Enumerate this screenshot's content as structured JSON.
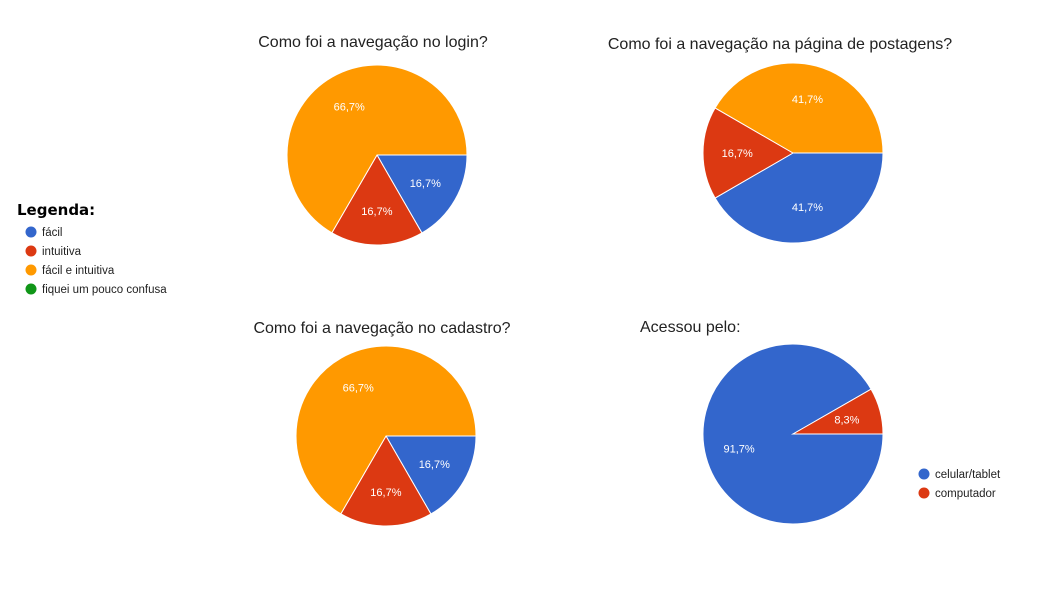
{
  "legend": {
    "title": "Legenda:",
    "items": [
      {
        "label": "fácil",
        "color": "#3366cc"
      },
      {
        "label": "intuitiva",
        "color": "#dc3912"
      },
      {
        "label": "fácil e intuitiva",
        "color": "#ff9900"
      },
      {
        "label": "fiquei um pouco confusa",
        "color": "#109618"
      }
    ]
  },
  "chart_data": [
    {
      "type": "pie",
      "title": "Como foi a navegação no login?",
      "slices": [
        {
          "label": "fácil",
          "value": 16.7,
          "color": "#3366cc",
          "display": "16,7%"
        },
        {
          "label": "intuitiva",
          "value": 16.7,
          "color": "#dc3912",
          "display": "16,7%"
        },
        {
          "label": "fácil e intuitiva",
          "value": 66.7,
          "color": "#ff9900",
          "display": "66,7%"
        }
      ]
    },
    {
      "type": "pie",
      "title": "Como foi a navegação na página de postagens?",
      "slices": [
        {
          "label": "fácil",
          "value": 41.7,
          "color": "#3366cc",
          "display": "41,7%"
        },
        {
          "label": "intuitiva",
          "value": 16.7,
          "color": "#dc3912",
          "display": "16,7%"
        },
        {
          "label": "fácil e intuitiva",
          "value": 41.7,
          "color": "#ff9900",
          "display": "41,7%"
        }
      ]
    },
    {
      "type": "pie",
      "title": "Como foi a navegação no cadastro?",
      "slices": [
        {
          "label": "fácil",
          "value": 16.7,
          "color": "#3366cc",
          "display": "16,7%"
        },
        {
          "label": "intuitiva",
          "value": 16.7,
          "color": "#dc3912",
          "display": "16,7%"
        },
        {
          "label": "fácil e intuitiva",
          "value": 66.7,
          "color": "#ff9900",
          "display": "66,7%"
        }
      ]
    },
    {
      "type": "pie",
      "title": "Acessou pelo:",
      "slices": [
        {
          "label": "celular/tablet",
          "value": 91.7,
          "color": "#3366cc",
          "display": "91,7%"
        },
        {
          "label": "computador",
          "value": 8.3,
          "color": "#dc3912",
          "display": "8,3%"
        }
      ],
      "legend_position": "right"
    }
  ]
}
